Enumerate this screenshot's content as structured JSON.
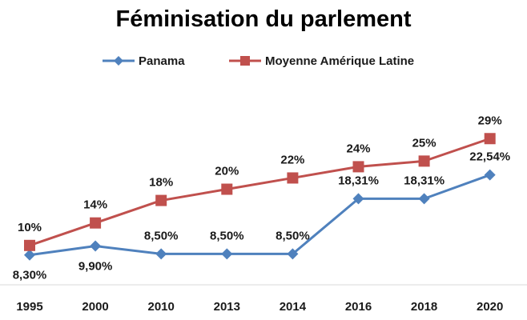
{
  "chart_data": {
    "type": "line",
    "title": "Féminisation du parlement",
    "categories": [
      "1995",
      "2000",
      "2010",
      "2013",
      "2014",
      "2016",
      "2018",
      "2020"
    ],
    "series": [
      {
        "name": "Panama",
        "color": "#4f81bd",
        "marker": "diamond",
        "values": [
          8.3,
          9.9,
          8.5,
          8.5,
          8.5,
          18.31,
          18.31,
          22.54
        ],
        "labels": [
          "8,30%",
          "9,90%",
          "8,50%",
          "8,50%",
          "8,50%",
          "18,31%",
          "18,31%",
          "22,54%"
        ],
        "label_position": [
          "below",
          "below",
          "above",
          "above",
          "above",
          "above",
          "above",
          "above"
        ]
      },
      {
        "name": "Moyenne Amérique Latine",
        "color": "#c0504d",
        "marker": "square",
        "values": [
          10,
          14,
          18,
          20,
          22,
          24,
          25,
          29
        ],
        "labels": [
          "10%",
          "14%",
          "18%",
          "20%",
          "22%",
          "24%",
          "25%",
          "29%"
        ],
        "label_position": [
          "above",
          "above",
          "above",
          "above",
          "above",
          "above",
          "above",
          "above"
        ]
      }
    ],
    "ylim": [
      3,
      38
    ],
    "grid": false,
    "legend": "top"
  }
}
